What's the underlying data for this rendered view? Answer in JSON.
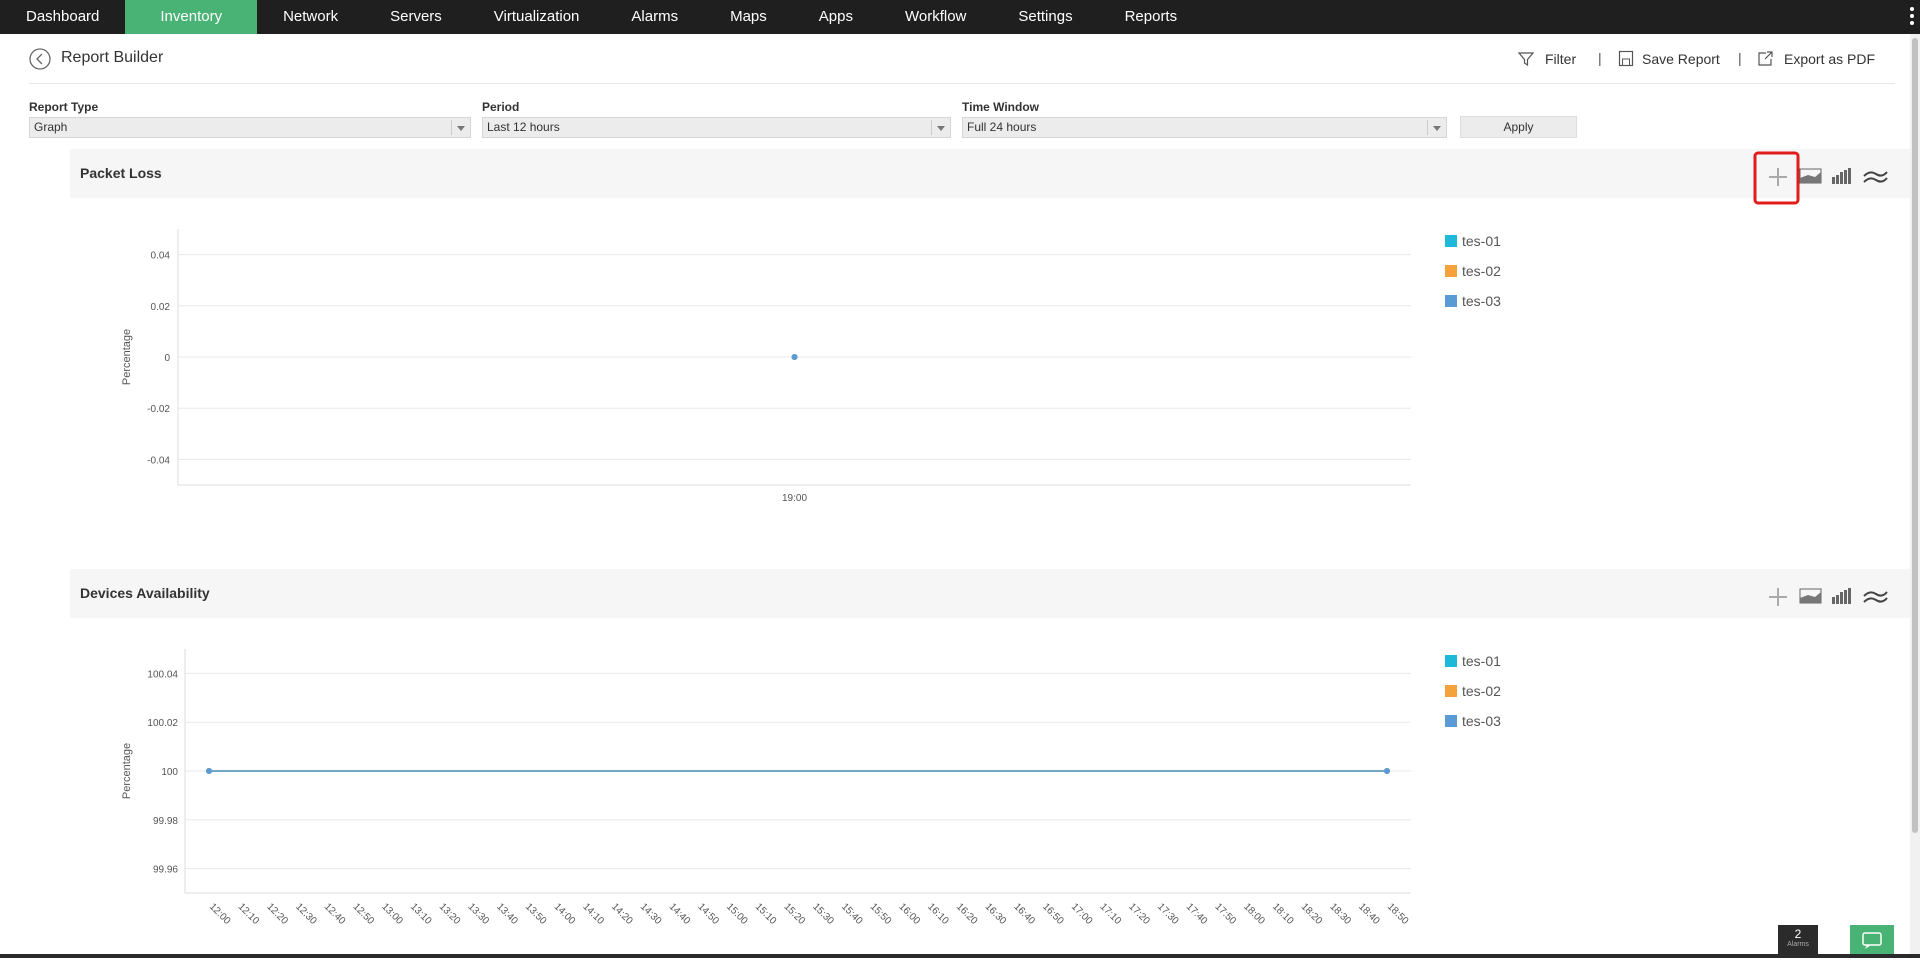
{
  "nav": {
    "items": [
      "Dashboard",
      "Inventory",
      "Network",
      "Servers",
      "Virtualization",
      "Alarms",
      "Maps",
      "Apps",
      "Workflow",
      "Settings",
      "Reports"
    ],
    "active": 1
  },
  "header": {
    "title": "Report Builder",
    "actions": [
      "Filter",
      "Save Report",
      "Export as PDF"
    ]
  },
  "filters": [
    {
      "label": "Report Type",
      "value": "Graph"
    },
    {
      "label": "Period",
      "value": "Last 12 hours"
    },
    {
      "label": "Time Window",
      "value": "Full 24 hours"
    }
  ],
  "apply": "Apply",
  "alarms": {
    "count": 2,
    "label": "Alarms"
  },
  "chart_data": [
    {
      "type": "line",
      "title": "Packet Loss",
      "ylabel": "Percentage",
      "categories": [
        "19:00"
      ],
      "series": [
        {
          "name": "tes-01",
          "color": "#1eb9d9",
          "values": [
            0
          ]
        },
        {
          "name": "tes-02",
          "color": "#f4a23b",
          "values": [
            0
          ]
        },
        {
          "name": "tes-03",
          "color": "#5b9bd5",
          "values": [
            0
          ]
        }
      ],
      "ylim": [
        -0.05,
        0.05
      ],
      "yticks": [
        -0.04,
        -0.02,
        0,
        0.02,
        0.04
      ],
      "grid": true,
      "legend": "right"
    },
    {
      "type": "line",
      "title": "Devices Availability",
      "ylabel": "Percentage",
      "categories": [
        "12:00",
        "12:10",
        "12:20",
        "12:30",
        "12:40",
        "12:50",
        "13:00",
        "13:10",
        "13:20",
        "13:30",
        "13:40",
        "13:50",
        "14:00",
        "14:10",
        "14:20",
        "14:30",
        "14:40",
        "14:50",
        "15:00",
        "15:10",
        "15:20",
        "15:30",
        "15:40",
        "15:50",
        "16:00",
        "16:10",
        "16:20",
        "16:30",
        "16:40",
        "16:50",
        "17:00",
        "17:10",
        "17:20",
        "17:30",
        "17:40",
        "17:50",
        "18:00",
        "18:10",
        "18:20",
        "18:30",
        "18:40",
        "18:50"
      ],
      "series": [
        {
          "name": "tes-01",
          "color": "#1eb9d9",
          "values": [
            100,
            100,
            100,
            100,
            100,
            100,
            100,
            100,
            100,
            100,
            100,
            100,
            100,
            100,
            100,
            100,
            100,
            100,
            100,
            100,
            100,
            100,
            100,
            100,
            100,
            100,
            100,
            100,
            100,
            100,
            100,
            100,
            100,
            100,
            100,
            100,
            100,
            100,
            100,
            100,
            100,
            100
          ]
        },
        {
          "name": "tes-02",
          "color": "#f4a23b",
          "values": [
            100,
            100,
            100,
            100,
            100,
            100,
            100,
            100,
            100,
            100,
            100,
            100,
            100,
            100,
            100,
            100,
            100,
            100,
            100,
            100,
            100,
            100,
            100,
            100,
            100,
            100,
            100,
            100,
            100,
            100,
            100,
            100,
            100,
            100,
            100,
            100,
            100,
            100,
            100,
            100,
            100,
            100
          ]
        },
        {
          "name": "tes-03",
          "color": "#5b9bd5",
          "values": [
            100,
            100,
            100,
            100,
            100,
            100,
            100,
            100,
            100,
            100,
            100,
            100,
            100,
            100,
            100,
            100,
            100,
            100,
            100,
            100,
            100,
            100,
            100,
            100,
            100,
            100,
            100,
            100,
            100,
            100,
            100,
            100,
            100,
            100,
            100,
            100,
            100,
            100,
            100,
            100,
            100,
            100
          ]
        }
      ],
      "ylim": [
        99.95,
        100.05
      ],
      "yticks": [
        99.96,
        99.98,
        100,
        100.02,
        100.04
      ],
      "grid": true,
      "legend": "right"
    }
  ]
}
